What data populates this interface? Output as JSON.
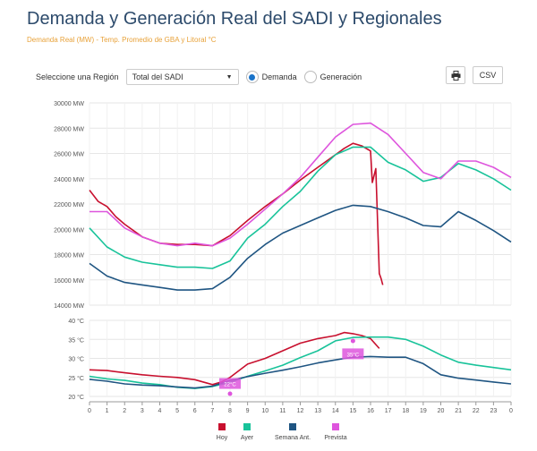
{
  "header": {
    "title": "Demanda y Generación Real del SADI y Regionales",
    "subtitle": "Demanda Real (MW) - Temp. Promedio de GBA y Litoral °C"
  },
  "controls": {
    "region_label": "Seleccione una Región",
    "region_value": "Total del SADI",
    "option_demand": "Demanda",
    "option_generation": "Generación",
    "selected": "Demanda",
    "csv_label": "CSV"
  },
  "chart_data": [
    {
      "type": "line",
      "y_unit": "MW",
      "ylim": [
        14000,
        30000
      ],
      "y_ticks": [
        "14000 MW",
        "16000 MW",
        "18000 MW",
        "20000 MW",
        "22000 MW",
        "24000 MW",
        "26000 MW",
        "28000 MW",
        "30000 MW"
      ],
      "series": [
        {
          "name": "Hoy",
          "color": "#c8102e",
          "x": [
            0,
            0.5,
            1,
            1.5,
            2,
            3,
            4,
            5,
            6,
            7,
            8,
            9,
            10,
            11,
            12,
            13,
            14,
            14.5,
            15,
            15.5,
            16,
            16.1,
            16.3,
            16.5,
            16.6,
            16.7
          ],
          "values": [
            23100,
            22200,
            21800,
            21000,
            20400,
            19400,
            18900,
            18800,
            18800,
            18700,
            19500,
            20700,
            21800,
            22800,
            23900,
            24900,
            25900,
            26400,
            26800,
            26600,
            26200,
            23700,
            24800,
            16500,
            16100,
            15600
          ]
        },
        {
          "name": "Ayer",
          "color": "#19c39a",
          "x": [
            0,
            1,
            2,
            3,
            4,
            5,
            6,
            7,
            8,
            9,
            10,
            11,
            12,
            13,
            14,
            15,
            16,
            17,
            18,
            19,
            20,
            21,
            22,
            23,
            24
          ],
          "values": [
            20100,
            18600,
            17800,
            17400,
            17200,
            17000,
            17000,
            16900,
            17500,
            19300,
            20400,
            21800,
            23000,
            24600,
            25900,
            26500,
            26500,
            25300,
            24700,
            23800,
            24100,
            25200,
            24700,
            24000,
            23100
          ]
        },
        {
          "name": "Semana Ant.",
          "color": "#1f5582",
          "x": [
            0,
            1,
            2,
            3,
            4,
            5,
            6,
            7,
            8,
            9,
            10,
            11,
            12,
            13,
            14,
            15,
            16,
            17,
            18,
            19,
            20,
            21,
            22,
            23,
            24
          ],
          "values": [
            17300,
            16300,
            15800,
            15600,
            15400,
            15200,
            15200,
            15300,
            16200,
            17700,
            18800,
            19700,
            20300,
            20900,
            21500,
            21900,
            21800,
            21400,
            20900,
            20300,
            20200,
            21400,
            20700,
            19900,
            19000
          ]
        },
        {
          "name": "Prevista",
          "color": "#de55dd",
          "x": [
            0,
            1,
            2,
            3,
            4,
            5,
            6,
            7,
            8,
            9,
            10,
            11,
            12,
            13,
            14,
            15,
            16,
            17,
            18,
            19,
            20,
            21,
            22,
            23,
            24
          ],
          "values": [
            21400,
            21400,
            20100,
            19400,
            18900,
            18700,
            18900,
            18700,
            19300,
            20400,
            21600,
            22800,
            24100,
            25700,
            27300,
            28300,
            28400,
            27500,
            26000,
            24500,
            24000,
            25400,
            25400,
            24900,
            24100
          ]
        }
      ]
    },
    {
      "type": "line",
      "y_unit": "°C",
      "ylim": [
        20,
        40
      ],
      "y_ticks": [
        "20 °C",
        "25 °C",
        "30 °C",
        "35 °C",
        "40 °C"
      ],
      "x_ticks": [
        "0",
        "1",
        "2",
        "3",
        "4",
        "5",
        "6",
        "7",
        "8",
        "9",
        "10",
        "11",
        "12",
        "13",
        "14",
        "15",
        "16",
        "17",
        "18",
        "19",
        "20",
        "21",
        "22",
        "23",
        "0"
      ],
      "annotations": [
        {
          "x": 8,
          "y": 23.4,
          "label": "22°C"
        },
        {
          "x": 15,
          "y": 31.2,
          "label": "35°C"
        }
      ],
      "series": [
        {
          "name": "Hoy",
          "color": "#c8102e",
          "x": [
            0,
            1,
            2,
            3,
            4,
            5,
            6,
            7,
            7.5,
            8,
            9,
            10,
            11,
            12,
            13,
            14,
            14.5,
            15,
            15.5,
            16,
            16.5
          ],
          "values": [
            27,
            26.8,
            26.2,
            25.7,
            25.3,
            25,
            24.4,
            23.1,
            23.8,
            25,
            28.5,
            30,
            32,
            34,
            35.2,
            36,
            36.8,
            36.5,
            36,
            35.2,
            32.6
          ]
        },
        {
          "name": "Ayer",
          "color": "#19c39a",
          "x": [
            0,
            1,
            2,
            3,
            4,
            5,
            6,
            7,
            8,
            9,
            10,
            11,
            12,
            13,
            14,
            15,
            16,
            17,
            18,
            19,
            20,
            21,
            22,
            23,
            24
          ],
          "values": [
            25.3,
            24.6,
            24.2,
            23.5,
            23.1,
            22.4,
            22.1,
            22.6,
            23.7,
            25.3,
            26.7,
            28.2,
            30.2,
            32,
            34.6,
            35.5,
            35.6,
            35.6,
            35,
            33.2,
            30.9,
            29,
            28.2,
            27.6,
            27
          ]
        },
        {
          "name": "Semana Ant.",
          "color": "#1f5582",
          "x": [
            0,
            1,
            2,
            3,
            4,
            5,
            6,
            7,
            8,
            9,
            10,
            11,
            12,
            13,
            14,
            15,
            16,
            17,
            18,
            19,
            20,
            21,
            22,
            23,
            24
          ],
          "values": [
            24.5,
            24,
            23.3,
            23,
            22.8,
            22.5,
            22.2,
            22.7,
            24.2,
            25.2,
            26.1,
            26.9,
            27.8,
            28.8,
            29.6,
            30.3,
            30.5,
            30.3,
            30.3,
            28.6,
            25.7,
            24.8,
            24.3,
            23.8,
            23.3
          ]
        }
      ]
    }
  ]
}
